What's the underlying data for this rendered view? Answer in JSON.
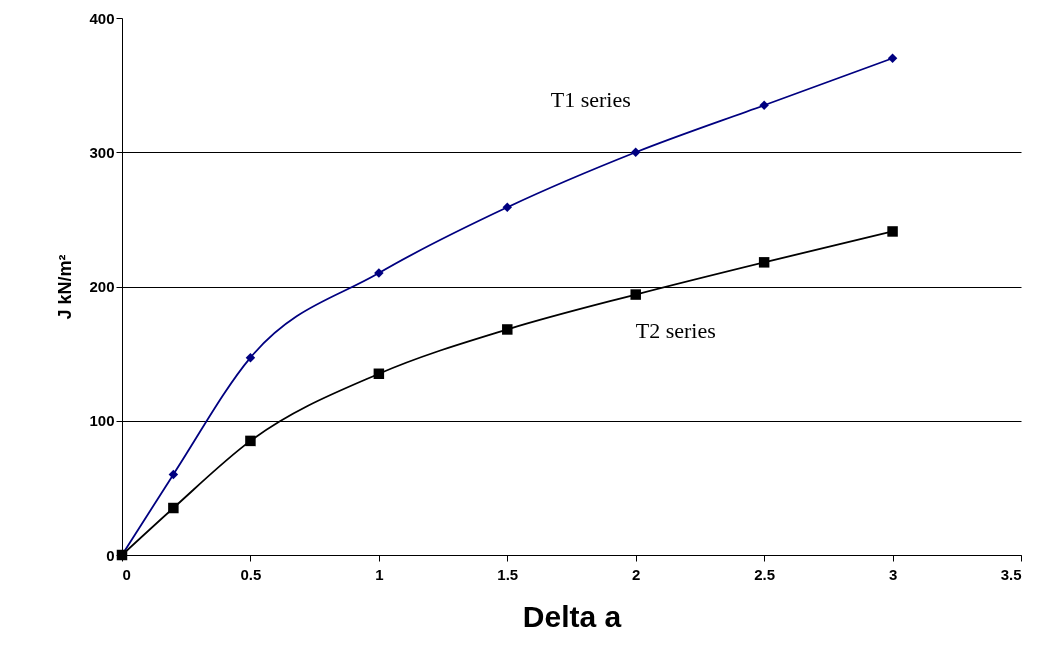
{
  "chart_data": {
    "type": "line",
    "xlabel": "Delta a",
    "ylabel": "J kN/m²",
    "xlim": [
      0,
      3.5
    ],
    "xticks": [
      0,
      0.5,
      1,
      1.5,
      2,
      2.5,
      3,
      3.5
    ],
    "ylim": [
      0,
      400
    ],
    "yticks": [
      0,
      100,
      200,
      300,
      400
    ],
    "grid": "y",
    "line_style": "solid",
    "series": [
      {
        "name": "T1 series",
        "color": "#000080",
        "marker": "diamond",
        "x": [
          0,
          0.2,
          0.5,
          1,
          1.5,
          2,
          2.5,
          3
        ],
        "values": [
          0,
          60,
          147,
          210,
          259,
          300,
          335,
          370
        ]
      },
      {
        "name": "T2 series",
        "color": "#000000",
        "marker": "square",
        "x": [
          0,
          0.2,
          0.5,
          1,
          1.5,
          2,
          2.5,
          3
        ],
        "values": [
          0,
          35,
          85,
          135,
          168,
          194,
          218,
          241
        ]
      }
    ]
  }
}
